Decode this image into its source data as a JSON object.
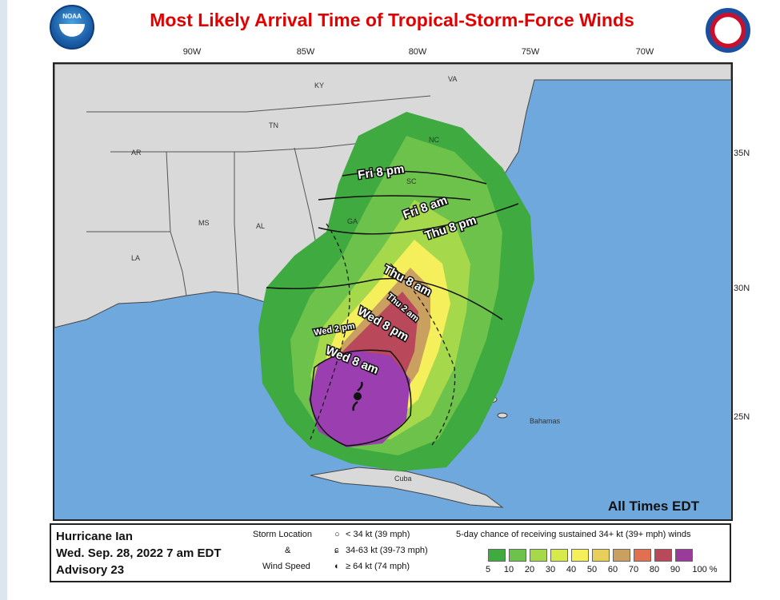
{
  "title": "Most Likely Arrival Time of Tropical-Storm-Force Winds",
  "logos": {
    "left": "NOAA",
    "left_icon": "noaa-logo-icon",
    "right_icon": "nws-logo-icon"
  },
  "longitude_labels": [
    "90W",
    "85W",
    "80W",
    "75W",
    "70W"
  ],
  "latitude_labels": [
    "35N",
    "30N",
    "25N"
  ],
  "state_labels": [
    "KY",
    "VA",
    "TN",
    "NC",
    "AR",
    "SC",
    "MS",
    "AL",
    "GA",
    "LA"
  ],
  "place_labels": [
    "Bahamas",
    "Cuba"
  ],
  "arrival_labels": [
    "Fri 8 pm",
    "Fri 8 am",
    "Thu 8 pm",
    "Thu 8 am",
    "Thu 2 am",
    "Wed 8 pm",
    "Wed 2 pm",
    "Wed 8 am"
  ],
  "all_times_note": "All Times EDT",
  "storm": {
    "name": "Hurricane Ian",
    "datetime": "Wed. Sep. 28, 2022  7 am EDT",
    "advisory": "Advisory 23"
  },
  "storm_legend": {
    "col1_line1": "Storm Location",
    "col1_line2": "&",
    "col1_line3": "Wind Speed",
    "items": [
      "< 34 kt (39 mph)",
      "34-63 kt (39-73 mph)",
      "≥ 64 kt (74 mph)"
    ]
  },
  "probability_legend": {
    "title": "5-day chance of receiving sustained 34+ kt (39+ mph) winds",
    "labels": [
      "5",
      "10",
      "20",
      "30",
      "40",
      "50",
      "60",
      "70",
      "80",
      "90",
      "100 %"
    ],
    "colors": [
      "#3faa3f",
      "#6cc24a",
      "#a6d84c",
      "#d6ea4e",
      "#f4ef5a",
      "#e8cf5a",
      "#c9a060",
      "#e07050",
      "#b8485a",
      "#9a3a9a"
    ]
  },
  "colors": {
    "ocean": "#6fa8dc",
    "land": "#d9d9d9",
    "title": "#e30000",
    "storm_purple": "#9b3fb0"
  }
}
